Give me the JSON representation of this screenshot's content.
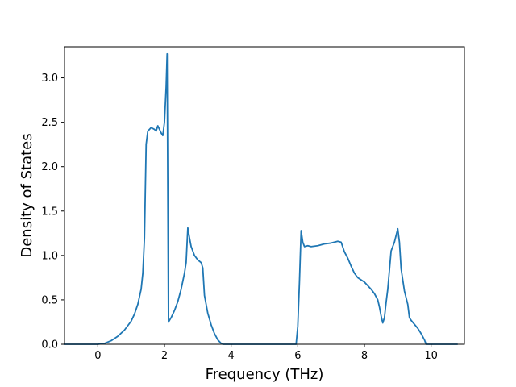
{
  "chart_data": {
    "type": "line",
    "title": "",
    "xlabel": "Frequency (THz)",
    "ylabel": "Density of States",
    "xlim": [
      -1.0,
      11.0
    ],
    "ylim": [
      0.0,
      3.35
    ],
    "xticks": [
      0,
      2,
      4,
      6,
      8,
      10
    ],
    "xtick_labels": [
      "0",
      "2",
      "4",
      "6",
      "8",
      "10"
    ],
    "yticks": [
      0.0,
      0.5,
      1.0,
      1.5,
      2.0,
      2.5,
      3.0
    ],
    "ytick_labels": [
      "0.0",
      "0.5",
      "1.0",
      "1.5",
      "2.0",
      "2.5",
      "3.0"
    ],
    "grid": false,
    "colors": {
      "line": "#1f77b4",
      "axes": "#000000",
      "background": "#ffffff"
    },
    "series": [
      {
        "x": [
          -1.0,
          0.0,
          0.2,
          0.4,
          0.6,
          0.8,
          1.0,
          1.1,
          1.2,
          1.3,
          1.35,
          1.4,
          1.45,
          1.5,
          1.6,
          1.7,
          1.75,
          1.8,
          1.9,
          1.95,
          2.0,
          2.05,
          2.08,
          2.12,
          2.2,
          2.3,
          2.4,
          2.5,
          2.6,
          2.65,
          2.7,
          2.75,
          2.8,
          2.9,
          3.0,
          3.1,
          3.15,
          3.2,
          3.3,
          3.4,
          3.5,
          3.6,
          3.7,
          3.75,
          4.0,
          5.0,
          5.95,
          6.0,
          6.05,
          6.1,
          6.15,
          6.2,
          6.3,
          6.4,
          6.6,
          6.8,
          7.0,
          7.2,
          7.3,
          7.4,
          7.5,
          7.6,
          7.7,
          7.8,
          8.0,
          8.2,
          8.3,
          8.4,
          8.45,
          8.5,
          8.55,
          8.6,
          8.65,
          8.7,
          8.8,
          8.9,
          9.0,
          9.05,
          9.1,
          9.2,
          9.3,
          9.35,
          9.4,
          9.6,
          9.7,
          9.8,
          9.85,
          10.0,
          10.8
        ],
        "y": [
          0.0,
          0.0,
          0.01,
          0.04,
          0.09,
          0.16,
          0.26,
          0.34,
          0.45,
          0.62,
          0.8,
          1.2,
          2.25,
          2.4,
          2.44,
          2.42,
          2.4,
          2.46,
          2.38,
          2.35,
          2.5,
          2.9,
          3.27,
          0.25,
          0.3,
          0.38,
          0.48,
          0.62,
          0.8,
          0.92,
          1.31,
          1.2,
          1.1,
          1.0,
          0.95,
          0.92,
          0.86,
          0.55,
          0.35,
          0.22,
          0.12,
          0.05,
          0.01,
          0.0,
          0.0,
          0.0,
          0.0,
          0.2,
          0.7,
          1.28,
          1.15,
          1.1,
          1.11,
          1.1,
          1.11,
          1.13,
          1.14,
          1.16,
          1.15,
          1.04,
          0.97,
          0.88,
          0.8,
          0.75,
          0.7,
          0.62,
          0.57,
          0.5,
          0.42,
          0.32,
          0.24,
          0.3,
          0.47,
          0.62,
          1.05,
          1.15,
          1.3,
          1.15,
          0.85,
          0.6,
          0.45,
          0.3,
          0.27,
          0.18,
          0.12,
          0.05,
          0.0,
          0.0,
          0.0
        ]
      }
    ]
  }
}
